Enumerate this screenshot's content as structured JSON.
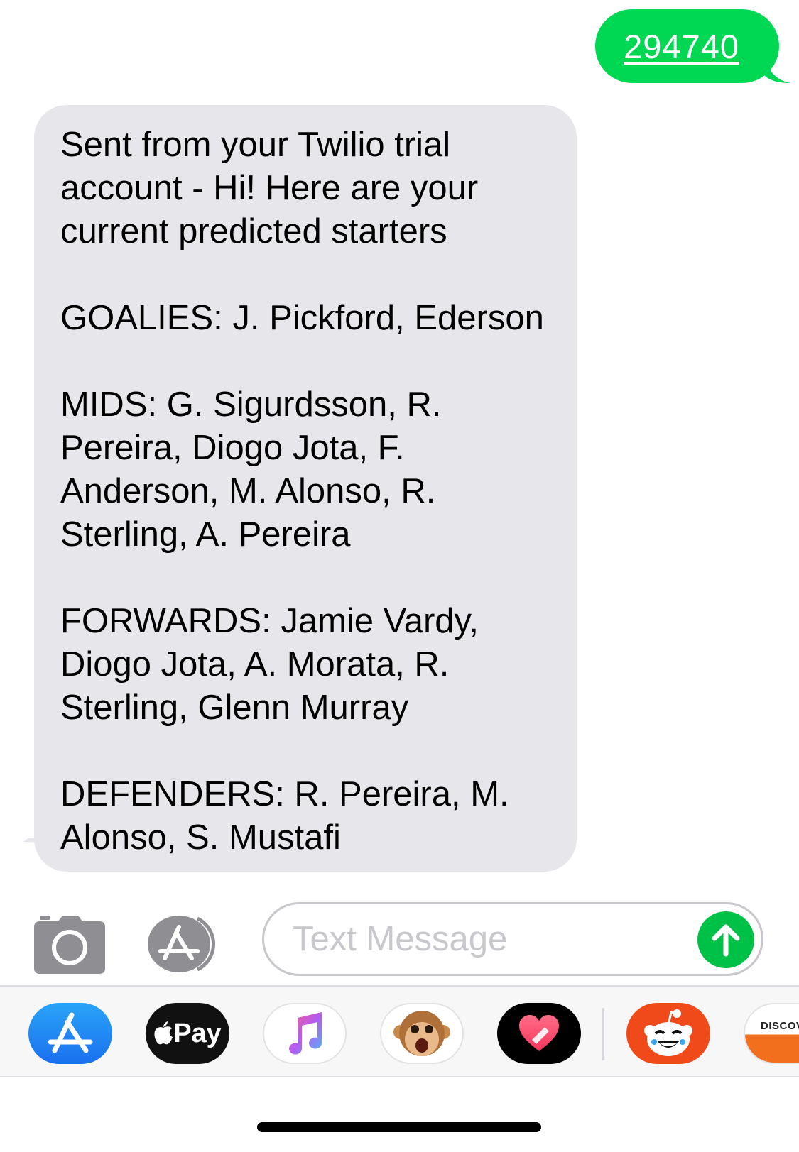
{
  "sent_message": {
    "text": "294740",
    "color": "#00d854"
  },
  "received_message": {
    "color": "#e6e6eb",
    "lines": [
      "Sent from your Twilio trial",
      "account - Hi! Here are your",
      "current predicted starters",
      "",
      "GOALIES: J. Pickford, Ederson",
      "",
      "MIDS: G. Sigurdsson, R.",
      "Pereira, Diogo Jota, F.",
      "Anderson, M. Alonso, R.",
      "Sterling, A. Pereira",
      "",
      "FORWARDS: Jamie Vardy,",
      "Diogo Jota, A. Morata, R.",
      "Sterling, Glenn Murray",
      "",
      "DEFENDERS: R. Pereira, M.",
      "Alonso, S. Mustafi"
    ]
  },
  "input_bar": {
    "placeholder": "Text Message",
    "send_color": "#00c148"
  },
  "app_drawer": {
    "apps": [
      {
        "name": "app-store-icon"
      },
      {
        "name": "apple-pay-icon",
        "label": "Pay"
      },
      {
        "name": "music-icon"
      },
      {
        "name": "animoji-icon"
      },
      {
        "name": "digital-touch-icon"
      },
      {
        "name": "reddit-icon"
      },
      {
        "name": "discover-icon",
        "label": "DISCOV"
      }
    ]
  }
}
